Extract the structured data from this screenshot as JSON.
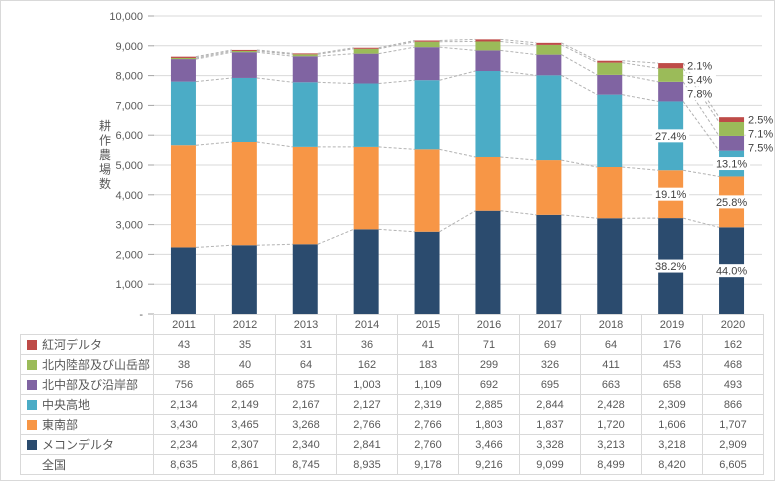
{
  "chart_data": {
    "type": "bar",
    "stacked": true,
    "title": "",
    "ylabel": "耕作農場数",
    "xlabel": "",
    "categories": [
      "2011",
      "2012",
      "2013",
      "2014",
      "2015",
      "2016",
      "2017",
      "2018",
      "2019",
      "2020"
    ],
    "series": [
      {
        "name": "メコンデルタ",
        "color": "#2B4B6E",
        "values": [
          2234,
          2307,
          2340,
          2841,
          2760,
          3466,
          3328,
          3213,
          3218,
          2909
        ]
      },
      {
        "name": "東南部",
        "color": "#F79646",
        "values": [
          3430,
          3465,
          3268,
          2766,
          2766,
          1803,
          1837,
          1720,
          1606,
          1707
        ]
      },
      {
        "name": "中央高地",
        "color": "#4BACC6",
        "values": [
          2134,
          2149,
          2167,
          2127,
          2319,
          2885,
          2844,
          2428,
          2309,
          866
        ]
      },
      {
        "name": "北中部及び沿岸部",
        "color": "#8064A2",
        "values": [
          756,
          865,
          875,
          1003,
          1109,
          692,
          695,
          663,
          658,
          493
        ]
      },
      {
        "name": "北内陸部及び山岳部",
        "color": "#9BBB59",
        "values": [
          38,
          40,
          64,
          162,
          183,
          299,
          326,
          411,
          453,
          468
        ]
      },
      {
        "name": "紅河デルタ",
        "color": "#BE4B48",
        "values": [
          43,
          35,
          31,
          36,
          41,
          71,
          69,
          64,
          176,
          162
        ]
      }
    ],
    "total": {
      "name": "全国",
      "values": [
        8635,
        8861,
        8745,
        8935,
        9178,
        9216,
        9099,
        8499,
        8420,
        6605
      ]
    },
    "ylim": [
      0,
      10000
    ],
    "ytick_step": 1000,
    "ytick_labels": [
      "-",
      "1,000",
      "2,000",
      "3,000",
      "4,000",
      "5,000",
      "6,000",
      "7,000",
      "8,000",
      "9,000",
      "10,000"
    ],
    "grid": true,
    "series_lines": true,
    "legend_position": "left-column-of-data-table",
    "pct_labels": [
      {
        "category": "2019",
        "values_by_series": [
          "38.2%",
          "19.1%",
          "27.4%",
          "7.8%",
          "5.4%",
          "2.1%"
        ]
      },
      {
        "category": "2020",
        "values_by_series": [
          "44.0%",
          "25.8%",
          "13.1%",
          "7.5%",
          "7.1%",
          "2.5%"
        ]
      }
    ]
  },
  "table": {
    "corner": "",
    "rows": [
      {
        "label": "紅河デルタ",
        "swatch": "#BE4B48",
        "cells": [
          "43",
          "35",
          "31",
          "36",
          "41",
          "71",
          "69",
          "64",
          "176",
          "162"
        ]
      },
      {
        "label": "北内陸部及び山岳部",
        "swatch": "#9BBB59",
        "cells": [
          "38",
          "40",
          "64",
          "162",
          "183",
          "299",
          "326",
          "411",
          "453",
          "468"
        ]
      },
      {
        "label": "北中部及び沿岸部",
        "swatch": "#8064A2",
        "cells": [
          "756",
          "865",
          "875",
          "1,003",
          "1,109",
          "692",
          "695",
          "663",
          "658",
          "493"
        ]
      },
      {
        "label": "中央高地",
        "swatch": "#4BACC6",
        "cells": [
          "2,134",
          "2,149",
          "2,167",
          "2,127",
          "2,319",
          "2,885",
          "2,844",
          "2,428",
          "2,309",
          "866"
        ]
      },
      {
        "label": "東南部",
        "swatch": "#F79646",
        "cells": [
          "3,430",
          "3,465",
          "3,268",
          "2,766",
          "2,766",
          "1,803",
          "1,837",
          "1,720",
          "1,606",
          "1,707"
        ]
      },
      {
        "label": "メコンデルタ",
        "swatch": "#2B4B6E",
        "cells": [
          "2,234",
          "2,307",
          "2,340",
          "2,841",
          "2,760",
          "3,466",
          "3,328",
          "3,213",
          "3,218",
          "2,909"
        ]
      },
      {
        "label": "全国",
        "swatch": null,
        "cells": [
          "8,635",
          "8,861",
          "8,745",
          "8,935",
          "9,178",
          "9,216",
          "9,099",
          "8,499",
          "8,420",
          "6,605"
        ]
      }
    ]
  },
  "colors": {
    "grid": "#D9D9D9",
    "axis_tick": "#A6A6A6",
    "axis_text": "#595959",
    "table_border": "#D9D9D9",
    "table_text": "#595959",
    "series_line": "#B3B3B3",
    "pct_label_text": "#404040",
    "label_background": "#FFFFFF",
    "background": "#FFFFFF"
  }
}
